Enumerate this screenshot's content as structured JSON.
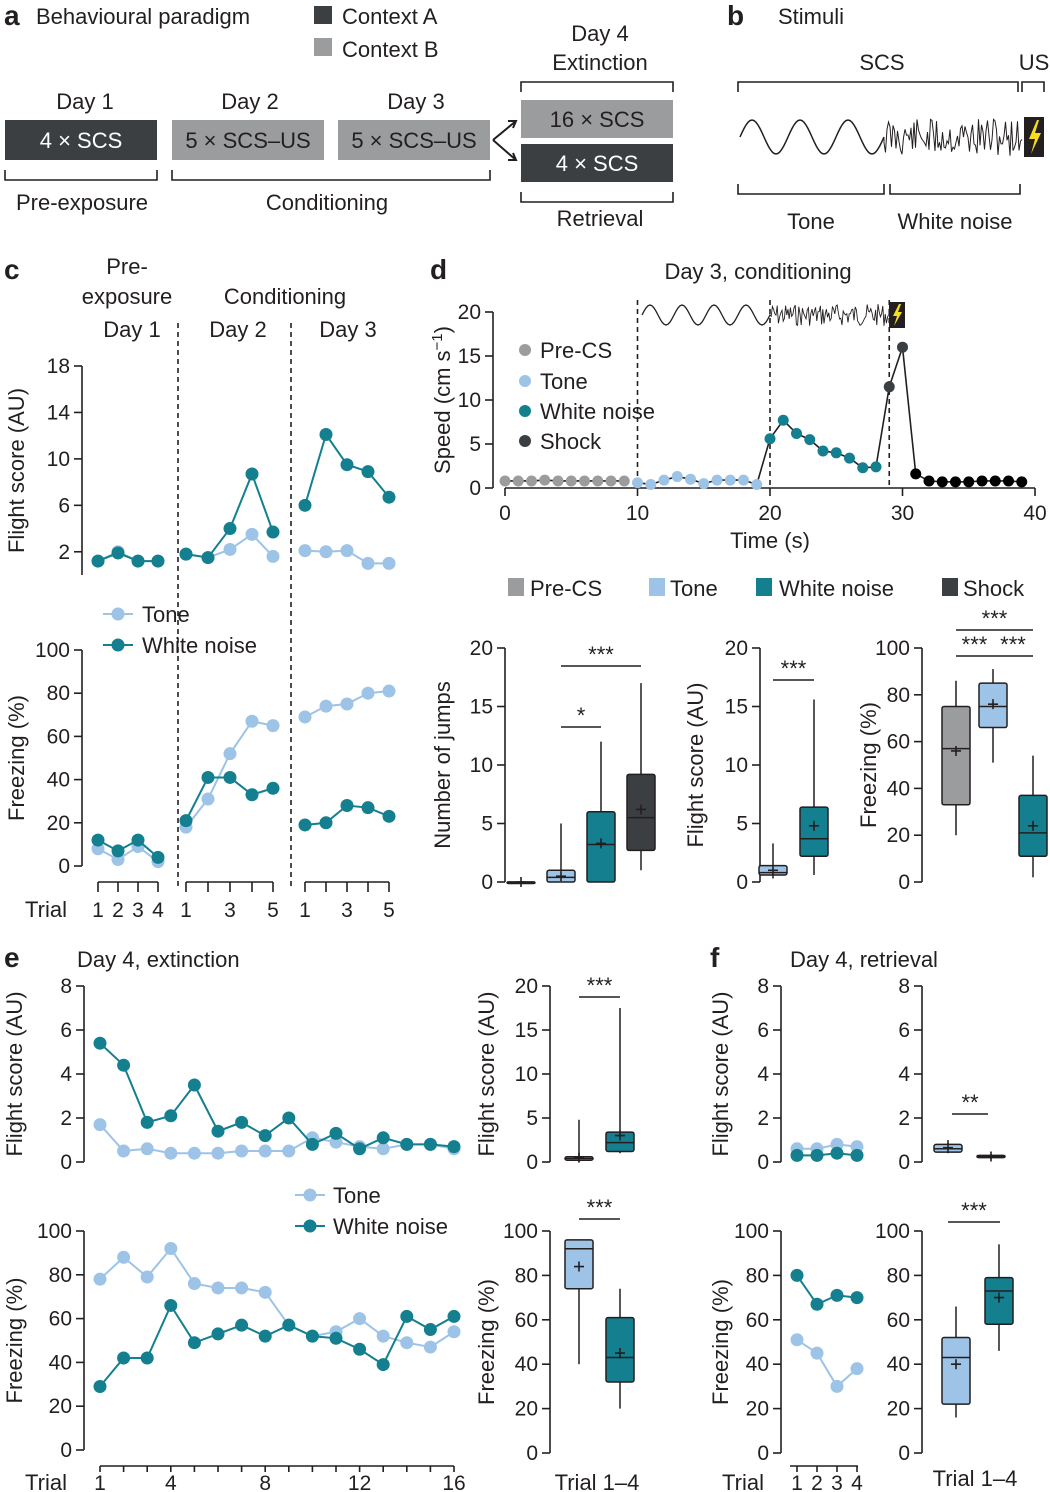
{
  "colors": {
    "contextA": "#3b3f42",
    "contextB": "#9b9c9e",
    "tone": "#9dc3e6",
    "white_noise": "#137f8f",
    "shock": "#3b3f42",
    "precs": "#9b9c9e",
    "us": "#f6dd1d"
  },
  "panel_a": {
    "label": "a",
    "title": "Behavioural paradigm",
    "legend": [
      "Context A",
      "Context B"
    ],
    "day1": "Day 1",
    "day2": "Day 2",
    "day3": "Day 3",
    "day4a": "Day 4",
    "day4b": "Extinction",
    "box1": "4 × SCS",
    "box2": "5 × SCS–US",
    "box3": "5 × SCS–US",
    "box4": "16 × SCS",
    "box5": "4 × SCS",
    "preexp": "Pre-exposure",
    "cond": "Conditioning",
    "retr": "Retrieval"
  },
  "panel_b": {
    "label": "b",
    "title": "Stimuli",
    "scs": "SCS",
    "us": "US",
    "tone": "Tone",
    "wn": "White noise"
  },
  "panel_c": {
    "label": "c",
    "pre1": "Pre-",
    "pre2": "exposure",
    "cond": "Conditioning",
    "day1": "Day 1",
    "day2": "Day 2",
    "day3": "Day 3",
    "legend": [
      "Tone",
      "White noise"
    ],
    "trial": "Trial"
  },
  "panel_d": {
    "label": "d",
    "title": "Day 3, conditioning",
    "legend": [
      "Pre-CS",
      "Tone",
      "White noise",
      "Shock"
    ],
    "box_legend": [
      "Pre-CS",
      "Tone",
      "White noise",
      "Shock"
    ]
  },
  "panel_e": {
    "label": "e",
    "title": "Day 4, extinction",
    "legend": [
      "Tone",
      "White noise"
    ],
    "trial": "Trial",
    "trial14": "Trial 1–4"
  },
  "panel_f": {
    "label": "f",
    "title": "Day 4, retrieval",
    "trial": "Trial",
    "trial14": "Trial 1–4"
  },
  "chart_data": [
    {
      "id": "c_flight",
      "type": "line",
      "ylabel": "Flight score (AU)",
      "ylim": [
        0,
        18
      ],
      "yticks": [
        2,
        6,
        10,
        14,
        18
      ],
      "series": [
        {
          "name": "Tone",
          "day1": [
            1.2,
            2.0,
            1.2,
            1.2
          ],
          "day2": [
            1.8,
            1.5,
            2.2,
            3.5,
            1.6
          ],
          "day3": [
            2.1,
            2.0,
            2.1,
            1.0,
            1.0
          ]
        },
        {
          "name": "White noise",
          "day1": [
            1.2,
            1.9,
            1.2,
            1.2
          ],
          "day2": [
            1.8,
            1.5,
            4.0,
            8.7,
            3.7
          ],
          "day3": [
            6.0,
            12.1,
            9.5,
            8.9,
            6.7
          ]
        }
      ]
    },
    {
      "id": "c_freezing",
      "type": "line",
      "ylabel": "Freezing (%)",
      "ylim": [
        0,
        100
      ],
      "yticks": [
        0,
        20,
        40,
        60,
        80,
        100
      ],
      "series": [
        {
          "name": "Tone",
          "day1": [
            8,
            3,
            9,
            2
          ],
          "day2": [
            18,
            31,
            52,
            67,
            65
          ],
          "day3": [
            69,
            74,
            75,
            80,
            81
          ]
        },
        {
          "name": "White noise",
          "day1": [
            12,
            7,
            12,
            4
          ],
          "day2": [
            21,
            41,
            41,
            33,
            36
          ],
          "day3": [
            19,
            20,
            28,
            27,
            23
          ]
        }
      ]
    },
    {
      "id": "d_speed",
      "type": "line",
      "title": "Day 3, conditioning",
      "xlabel": "Time (s)",
      "ylabel": "Speed (cm s−1)",
      "xlim": [
        0,
        40
      ],
      "ylim": [
        0,
        20
      ],
      "xticks": [
        0,
        10,
        20,
        30,
        40
      ],
      "yticks": [
        0,
        5,
        10,
        15,
        20
      ],
      "x": [
        0,
        1,
        2,
        3,
        4,
        5,
        6,
        7,
        8,
        9,
        10,
        11,
        12,
        13,
        14,
        15,
        16,
        17,
        18,
        19,
        20,
        21,
        22,
        23,
        24,
        25,
        26,
        27,
        28,
        29,
        30,
        31,
        32,
        33,
        34,
        35,
        36,
        37,
        38,
        39
      ],
      "y": [
        0.8,
        0.8,
        0.8,
        0.9,
        0.8,
        0.8,
        0.8,
        0.8,
        0.8,
        0.8,
        0.6,
        0.4,
        0.9,
        1.3,
        1.0,
        0.5,
        0.9,
        0.9,
        0.9,
        0.4,
        5.6,
        7.7,
        6.2,
        5.5,
        4.2,
        4.0,
        3.4,
        2.3,
        2.4,
        11.5,
        16.0,
        1.6,
        0.8,
        0.7,
        0.7,
        0.7,
        0.8,
        0.8,
        0.8,
        0.7
      ],
      "phase": [
        "Pre-CS",
        "Pre-CS",
        "Pre-CS",
        "Pre-CS",
        "Pre-CS",
        "Pre-CS",
        "Pre-CS",
        "Pre-CS",
        "Pre-CS",
        "Pre-CS",
        "Tone",
        "Tone",
        "Tone",
        "Tone",
        "Tone",
        "Tone",
        "Tone",
        "Tone",
        "Tone",
        "Tone",
        "White noise",
        "White noise",
        "White noise",
        "White noise",
        "White noise",
        "White noise",
        "White noise",
        "White noise",
        "White noise",
        "Shock",
        "Shock",
        "Shock",
        "Shock",
        "Shock",
        "Shock",
        "Shock",
        "Shock",
        "Shock",
        "Shock",
        "Shock"
      ]
    },
    {
      "id": "d_jumps",
      "type": "box",
      "ylabel": "Number of jumps",
      "ylim": [
        0,
        20
      ],
      "yticks": [
        0,
        5,
        10,
        15,
        20
      ],
      "groups": [
        {
          "name": "Pre-CS",
          "whisker_low": 0,
          "q1": 0,
          "median": 0,
          "q3": 0,
          "whisker_high": 0,
          "mean": 0
        },
        {
          "name": "Tone",
          "whisker_low": 0,
          "q1": 0,
          "median": 0.4,
          "q3": 1.0,
          "whisker_high": 5.0,
          "mean": 0.5
        },
        {
          "name": "White noise",
          "whisker_low": 0,
          "q1": 0,
          "median": 3.2,
          "q3": 6.0,
          "whisker_high": 12.0,
          "mean": 3.3
        },
        {
          "name": "Shock",
          "whisker_low": 1.0,
          "q1": 2.7,
          "median": 5.5,
          "q3": 9.2,
          "whisker_high": 17.0,
          "mean": 6.2
        }
      ],
      "sig": [
        {
          "from": "Tone",
          "to": "White noise",
          "label": "*"
        },
        {
          "from": "Tone",
          "to": "Shock",
          "label": "***"
        }
      ]
    },
    {
      "id": "d_flight",
      "type": "box",
      "ylabel": "Flight score (AU)",
      "ylim": [
        0,
        20
      ],
      "yticks": [
        0,
        5,
        10,
        15,
        20
      ],
      "groups": [
        {
          "name": "Tone",
          "whisker_low": 0.3,
          "q1": 0.6,
          "median": 0.8,
          "q3": 1.4,
          "whisker_high": 3.3,
          "mean": 1.0
        },
        {
          "name": "White noise",
          "whisker_low": 0.6,
          "q1": 2.2,
          "median": 3.7,
          "q3": 6.4,
          "whisker_high": 15.6,
          "mean": 4.8
        }
      ],
      "sig": [
        {
          "from": "Tone",
          "to": "White noise",
          "label": "***"
        }
      ]
    },
    {
      "id": "d_freezing",
      "type": "box",
      "ylabel": "Freezing (%)",
      "ylim": [
        0,
        100
      ],
      "yticks": [
        0,
        20,
        40,
        60,
        80,
        100
      ],
      "groups": [
        {
          "name": "Pre-CS",
          "whisker_low": 20,
          "q1": 33,
          "median": 57,
          "q3": 75,
          "whisker_high": 86,
          "mean": 56
        },
        {
          "name": "Tone",
          "whisker_low": 51,
          "q1": 66,
          "median": 75,
          "q3": 85,
          "whisker_high": 91,
          "mean": 76
        },
        {
          "name": "White noise",
          "whisker_low": 2,
          "q1": 11,
          "median": 21,
          "q3": 37,
          "whisker_high": 54,
          "mean": 24
        }
      ],
      "sig": [
        {
          "from": "Pre-CS",
          "to": "White noise",
          "label": "***"
        },
        {
          "from": "Pre-CS",
          "to": "Tone",
          "label": "***"
        },
        {
          "from": "Tone",
          "to": "White noise",
          "label": "***"
        }
      ]
    },
    {
      "id": "e_flight",
      "type": "line",
      "ylabel": "Flight score (AU)",
      "ylim": [
        0,
        8
      ],
      "yticks": [
        0,
        2,
        4,
        6,
        8
      ],
      "x": [
        1,
        2,
        3,
        4,
        5,
        6,
        7,
        8,
        9,
        10,
        11,
        12,
        13,
        14,
        15,
        16
      ],
      "xticks": [
        1,
        4,
        8,
        12,
        16
      ],
      "series": [
        {
          "name": "Tone",
          "values": [
            1.7,
            0.5,
            0.6,
            0.4,
            0.4,
            0.4,
            0.5,
            0.5,
            0.5,
            1.1,
            0.9,
            0.7,
            0.6,
            0.8,
            0.8,
            0.6
          ]
        },
        {
          "name": "White noise",
          "values": [
            5.4,
            4.4,
            1.8,
            2.1,
            3.5,
            1.4,
            1.8,
            1.2,
            2.0,
            0.8,
            1.3,
            0.6,
            1.1,
            0.8,
            0.8,
            0.7
          ]
        }
      ]
    },
    {
      "id": "e_freezing",
      "type": "line",
      "ylabel": "Freezing (%)",
      "ylim": [
        0,
        100
      ],
      "yticks": [
        0,
        20,
        40,
        60,
        80,
        100
      ],
      "x": [
        1,
        2,
        3,
        4,
        5,
        6,
        7,
        8,
        9,
        10,
        11,
        12,
        13,
        14,
        15,
        16
      ],
      "xticks": [
        1,
        4,
        8,
        12,
        16
      ],
      "series": [
        {
          "name": "Tone",
          "values": [
            78,
            88,
            79,
            92,
            76,
            74,
            74,
            72,
            57,
            52,
            54,
            60,
            52,
            49,
            47,
            54
          ]
        },
        {
          "name": "White noise",
          "values": [
            29,
            42,
            42,
            66,
            49,
            53,
            57,
            52,
            57,
            52,
            51,
            46,
            39,
            61,
            55,
            61
          ]
        }
      ]
    },
    {
      "id": "e_box_flight",
      "type": "box",
      "ylabel": "Flight score (AU)",
      "ylim": [
        0,
        20
      ],
      "yticks": [
        0,
        5,
        10,
        15,
        20
      ],
      "groups": [
        {
          "name": "Tone",
          "whisker_low": 0,
          "q1": 0.2,
          "median": 0.4,
          "q3": 0.6,
          "whisker_high": 4.8,
          "mean": 0.5
        },
        {
          "name": "White noise",
          "whisker_low": 1.0,
          "q1": 1.2,
          "median": 2.2,
          "q3": 3.4,
          "whisker_high": 17.5,
          "mean": 3.0
        }
      ],
      "sig": [
        {
          "from": "Tone",
          "to": "White noise",
          "label": "***"
        }
      ]
    },
    {
      "id": "e_box_freezing",
      "type": "box",
      "ylabel": "Freezing (%)",
      "ylim": [
        0,
        100
      ],
      "yticks": [
        0,
        20,
        40,
        60,
        80,
        100
      ],
      "groups": [
        {
          "name": "Tone",
          "whisker_low": 40,
          "q1": 74,
          "median": 92,
          "q3": 96,
          "whisker_high": 96,
          "mean": 84
        },
        {
          "name": "White noise",
          "whisker_low": 20,
          "q1": 32,
          "median": 43,
          "q3": 61,
          "whisker_high": 74,
          "mean": 45
        }
      ],
      "sig": [
        {
          "from": "Tone",
          "to": "White noise",
          "label": "***"
        }
      ]
    },
    {
      "id": "f_flight",
      "type": "line",
      "ylabel": "Flight score (AU)",
      "ylim": [
        0,
        8
      ],
      "yticks": [
        0,
        2,
        4,
        6,
        8
      ],
      "x": [
        1,
        2,
        3,
        4
      ],
      "series": [
        {
          "name": "Tone",
          "values": [
            0.6,
            0.6,
            0.8,
            0.7
          ]
        },
        {
          "name": "White noise",
          "values": [
            0.3,
            0.3,
            0.4,
            0.3
          ]
        }
      ]
    },
    {
      "id": "f_freezing",
      "type": "line",
      "ylabel": "Freezing (%)",
      "ylim": [
        0,
        100
      ],
      "yticks": [
        0,
        20,
        40,
        60,
        80,
        100
      ],
      "x": [
        1,
        2,
        3,
        4
      ],
      "series": [
        {
          "name": "Tone",
          "values": [
            51,
            45,
            30,
            38
          ]
        },
        {
          "name": "White noise",
          "values": [
            80,
            67,
            71,
            70
          ]
        }
      ]
    },
    {
      "id": "f_box_flight",
      "type": "box",
      "ylim": [
        0,
        8
      ],
      "yticks": [
        0,
        2,
        4,
        6,
        8
      ],
      "groups": [
        {
          "name": "Tone",
          "whisker_low": 0.4,
          "q1": 0.45,
          "median": 0.6,
          "q3": 0.8,
          "whisker_high": 1.0,
          "mean": 0.65
        },
        {
          "name": "White noise",
          "whisker_low": 0.15,
          "q1": 0.2,
          "median": 0.25,
          "q3": 0.3,
          "whisker_high": 0.35,
          "mean": 0.25
        }
      ],
      "sig": [
        {
          "from": "Tone",
          "to": "White noise",
          "label": "**"
        }
      ]
    },
    {
      "id": "f_box_freezing",
      "type": "box",
      "ylim": [
        0,
        100
      ],
      "yticks": [
        0,
        20,
        40,
        60,
        80,
        100
      ],
      "groups": [
        {
          "name": "Tone",
          "whisker_low": 16,
          "q1": 22,
          "median": 43,
          "q3": 52,
          "whisker_high": 66,
          "mean": 40
        },
        {
          "name": "White noise",
          "whisker_low": 46,
          "q1": 58,
          "median": 73,
          "q3": 79,
          "whisker_high": 94,
          "mean": 70
        }
      ],
      "sig": [
        {
          "from": "Tone",
          "to": "White noise",
          "label": "***"
        }
      ]
    }
  ]
}
